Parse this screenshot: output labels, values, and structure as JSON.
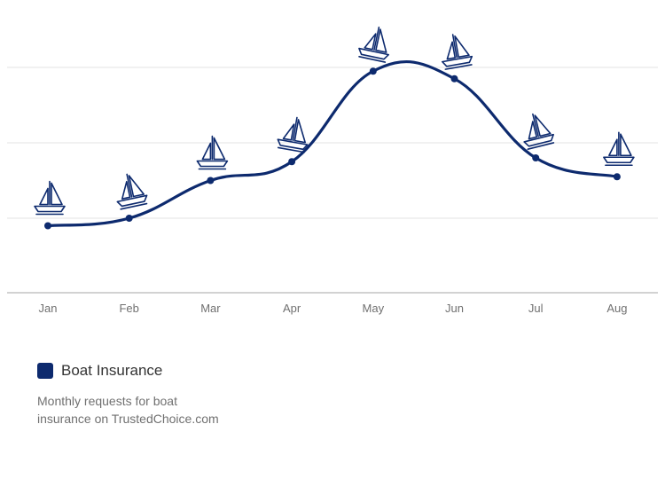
{
  "chart_data": {
    "type": "line",
    "title": "",
    "xlabel": "",
    "ylabel": "",
    "categories": [
      "Jan",
      "Feb",
      "Mar",
      "Apr",
      "May",
      "Jun",
      "Jul",
      "Aug"
    ],
    "series": [
      {
        "name": "Boat Insurance",
        "values": [
          0.9,
          1.0,
          1.5,
          1.75,
          2.95,
          2.85,
          1.8,
          1.55
        ],
        "color": "#0d2a6e",
        "marker_icon": "sailboat-icon"
      }
    ],
    "ylim": [
      0,
      3
    ],
    "grid": true,
    "y_tick_labels_shown": false,
    "legend_placement": "bottom-left"
  },
  "legend": {
    "name": "Boat Insurance",
    "description": "Monthly requests for boat insurance on TrustedChoice.com",
    "color": "#0d2a6e"
  }
}
